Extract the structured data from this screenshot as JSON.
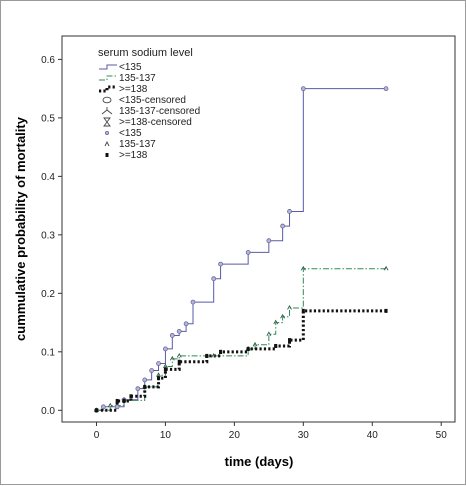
{
  "chart_data": {
    "type": "line",
    "title": "",
    "xlabel": "time (days)",
    "ylabel": "cummulative probability of mortality",
    "xlim": [
      -5,
      52
    ],
    "ylim": [
      -0.02,
      0.64
    ],
    "xticks": [
      "0",
      "10",
      "20",
      "30",
      "40",
      "50"
    ],
    "xtick_values": [
      0,
      10,
      20,
      30,
      40,
      50
    ],
    "yticks": [
      "0.0",
      "0.1",
      "0.2",
      "0.3",
      "0.4",
      "0.5",
      "0.6"
    ],
    "ytick_values": [
      0,
      0.1,
      0.2,
      0.3,
      0.4,
      0.5,
      0.6
    ],
    "grid": false,
    "legend_title": "serum sodium level",
    "legend_placement": "top-left",
    "legend": [
      {
        "label": "<135",
        "kind": "line",
        "series": 0
      },
      {
        "label": "135-137",
        "kind": "line",
        "series": 1
      },
      {
        "label": ">=138",
        "kind": "line",
        "series": 2
      },
      {
        "label": "<135-censored",
        "kind": "censor",
        "series": 0
      },
      {
        "label": "135-137-censored",
        "kind": "censor",
        "series": 1
      },
      {
        "label": ">=138-censored",
        "kind": "censor",
        "series": 2
      },
      {
        "label": "<135",
        "kind": "marker",
        "series": 0
      },
      {
        "label": "135-137",
        "kind": "marker",
        "series": 1
      },
      {
        "label": ">=138",
        "kind": "marker",
        "series": 2
      }
    ],
    "series": [
      {
        "name": "<135",
        "color": "#5a5aa8",
        "style": "solid",
        "x": [
          0,
          1,
          3,
          4,
          6,
          7,
          8,
          9,
          10,
          11,
          12,
          13,
          14,
          17,
          18,
          22,
          25,
          27,
          28,
          30,
          42
        ],
        "y": [
          0,
          0.006,
          0.006,
          0.018,
          0.037,
          0.052,
          0.068,
          0.08,
          0.105,
          0.128,
          0.135,
          0.148,
          0.185,
          0.225,
          0.25,
          0.27,
          0.29,
          0.315,
          0.34,
          0.55,
          0.55
        ]
      },
      {
        "name": "135-137",
        "color": "#2e8b57",
        "style": "dashdot",
        "x": [
          0,
          2,
          4,
          7,
          9,
          10,
          11,
          12,
          17,
          22,
          23,
          25,
          26,
          27,
          28,
          30,
          42
        ],
        "y": [
          0,
          0.008,
          0.017,
          0.04,
          0.06,
          0.075,
          0.088,
          0.093,
          0.093,
          0.105,
          0.112,
          0.13,
          0.15,
          0.16,
          0.175,
          0.242,
          0.242
        ]
      },
      {
        "name": ">=138",
        "color": "#111111",
        "style": "dotted",
        "x": [
          0,
          3,
          4,
          5,
          7,
          9,
          10,
          12,
          16,
          18,
          22,
          26,
          28,
          30,
          42
        ],
        "y": [
          0,
          0.016,
          0.016,
          0.024,
          0.04,
          0.055,
          0.07,
          0.083,
          0.093,
          0.1,
          0.105,
          0.11,
          0.12,
          0.17,
          0.17
        ]
      }
    ]
  }
}
